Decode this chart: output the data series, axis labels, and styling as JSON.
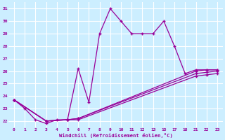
{
  "xlabel": "Windchill (Refroidissement éolien,°C)",
  "bg_color": "#cceeff",
  "line_color": "#990099",
  "grid_color": "#ffffff",
  "yticks_labels": [
    "22",
    "23",
    "24",
    "25",
    "26",
    "27",
    "28",
    "29",
    "30",
    "31"
  ],
  "yticks_vals": [
    22,
    23,
    24,
    25,
    26,
    27,
    28,
    29,
    30,
    31
  ],
  "xticks_labels": [
    "0",
    "1",
    "2",
    "3",
    "4",
    "5",
    "6",
    "7",
    "8",
    "9",
    "10",
    "11",
    "12",
    "13",
    "15",
    "17",
    "18",
    "21",
    "22",
    "23"
  ],
  "xticks_vals": [
    0,
    1,
    2,
    3,
    4,
    5,
    6,
    7,
    8,
    9,
    10,
    11,
    12,
    13,
    14,
    15,
    16,
    17,
    18,
    19
  ],
  "ylim": [
    21.5,
    31.5
  ],
  "xlim": [
    -0.5,
    19.5
  ],
  "series": [
    {
      "xi": [
        0,
        1,
        2,
        3,
        4,
        5,
        6,
        7,
        8,
        9,
        10,
        11,
        12,
        13,
        14,
        15,
        16,
        17,
        18,
        19
      ],
      "y": [
        23.7,
        23.0,
        22.1,
        21.8,
        22.1,
        22.1,
        26.2,
        23.5,
        29.0,
        31.0,
        30.0,
        29.0,
        29.0,
        29.0,
        30.0,
        28.0,
        25.8,
        26.1,
        26.1,
        26.1
      ]
    },
    {
      "xi": [
        0,
        3,
        5,
        6,
        17,
        18,
        19
      ],
      "y": [
        23.7,
        22.0,
        22.1,
        22.1,
        25.6,
        25.7,
        25.8
      ]
    },
    {
      "xi": [
        0,
        3,
        5,
        6,
        17,
        18,
        19
      ],
      "y": [
        23.7,
        22.0,
        22.1,
        22.2,
        25.8,
        25.9,
        26.0
      ]
    },
    {
      "xi": [
        0,
        3,
        5,
        6,
        17,
        18,
        19
      ],
      "y": [
        23.7,
        22.0,
        22.1,
        22.2,
        26.0,
        26.1,
        26.1
      ]
    }
  ]
}
